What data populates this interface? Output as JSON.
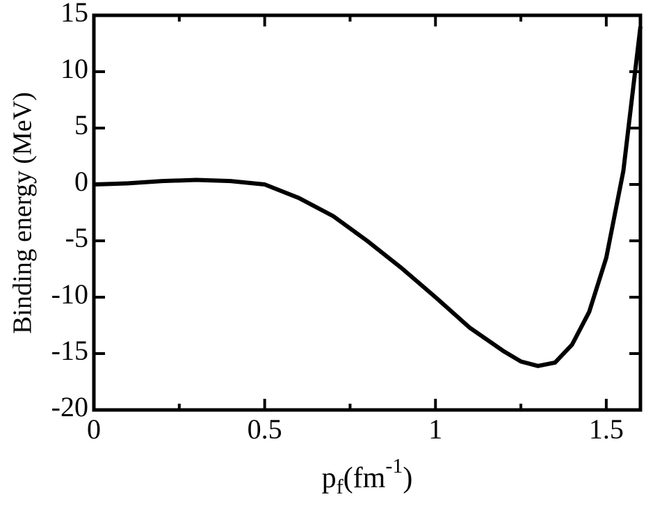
{
  "chart_data": {
    "type": "line",
    "y_label": "Binding energy (MeV)",
    "x_label_parts": [
      "p",
      "f",
      "(fm",
      "-1",
      ")"
    ],
    "x": [
      0,
      0.05,
      0.1,
      0.2,
      0.3,
      0.4,
      0.5,
      0.6,
      0.7,
      0.8,
      0.9,
      1.0,
      1.1,
      1.2,
      1.25,
      1.3,
      1.35,
      1.4,
      1.45,
      1.5,
      1.55,
      1.6
    ],
    "series": [
      {
        "color": "#000000",
        "values": [
          0,
          0.05,
          0.1,
          0.3,
          0.4,
          0.3,
          0,
          -1.2,
          -2.8,
          -5,
          -7.4,
          -10,
          -12.7,
          -14.8,
          -15.7,
          -16.1,
          -15.8,
          -14.2,
          -11.3,
          -6.5,
          1.2,
          14
        ]
      }
    ],
    "xlim": [
      0,
      1.6
    ],
    "ylim": [
      -20,
      15
    ],
    "xticks": [
      0,
      0.5,
      1,
      1.5
    ],
    "xminorticks": [
      0.25,
      0.75,
      1.25
    ],
    "yticks": [
      -20,
      -15,
      -10,
      -5,
      0,
      5,
      10,
      15
    ]
  }
}
